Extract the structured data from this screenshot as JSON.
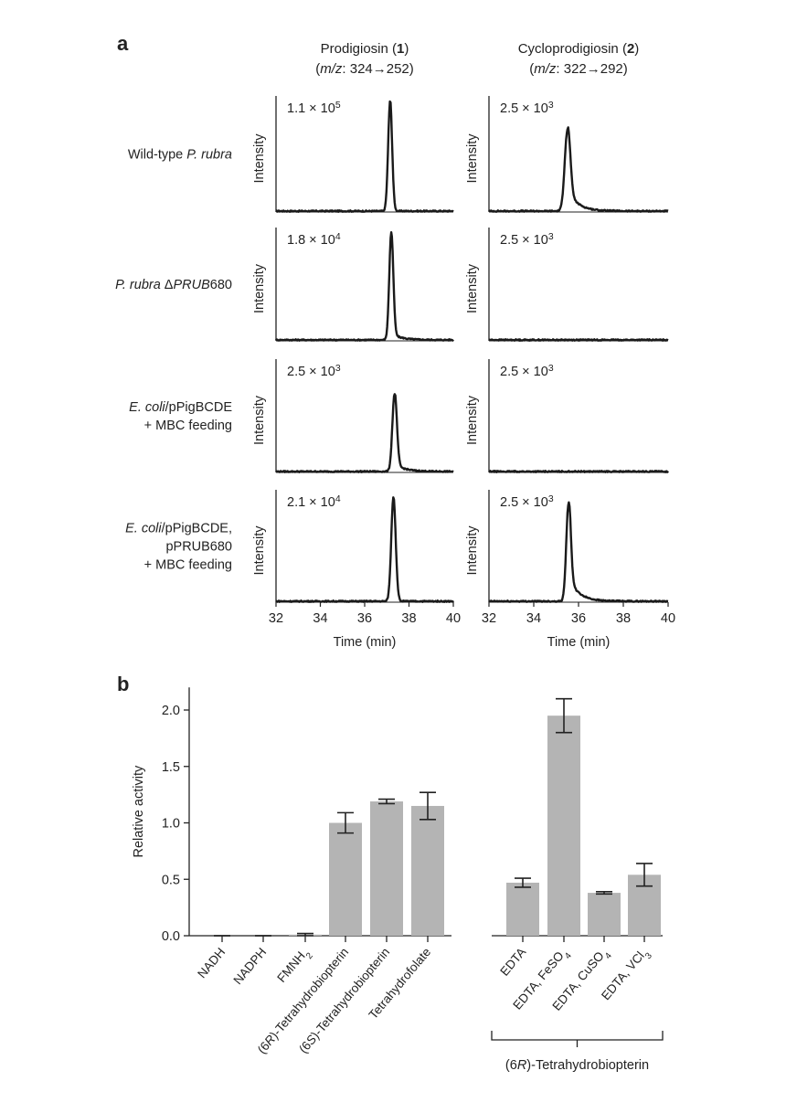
{
  "panel_a": {
    "label": "a",
    "columns": [
      {
        "name": "Prodigiosin",
        "num": "1",
        "mz_prefix": "m/z",
        "mz_transition": ": 324→252"
      },
      {
        "name": "Cycloprodigiosin",
        "num": "2",
        "mz_prefix": "m/z",
        "mz_transition": ": 322→292"
      }
    ],
    "rows": [
      {
        "lines": [
          [
            {
              "t": "Wild-type "
            },
            {
              "t": "P. rubra",
              "i": true
            }
          ]
        ]
      },
      {
        "lines": [
          [
            {
              "t": "P. rubra",
              "i": true
            },
            {
              "t": " Δ"
            },
            {
              "t": "PRUB",
              "i": true
            },
            {
              "t": "680"
            }
          ]
        ]
      },
      {
        "lines": [
          [
            {
              "t": "E. coli",
              "i": true
            },
            {
              "t": "/pPigBCDE"
            }
          ],
          [
            {
              "t": "+ MBC feeding"
            }
          ]
        ]
      },
      {
        "lines": [
          [
            {
              "t": "E. coli",
              "i": true
            },
            {
              "t": "/pPigBCDE,"
            }
          ],
          [
            {
              "t": "pPRUB680"
            }
          ],
          [
            {
              "t": "+ MBC feeding"
            }
          ]
        ]
      }
    ],
    "scales": [
      [
        "1.1 × 10",
        "5",
        "2.5 × 10",
        "3"
      ],
      [
        "1.8 × 10",
        "4",
        "2.5 × 10",
        "3"
      ],
      [
        "2.5 × 10",
        "3",
        "2.5 × 10",
        "3"
      ],
      [
        "2.1 × 10",
        "4",
        "2.5 × 10",
        "3"
      ]
    ],
    "ylabel": "Intensity",
    "xlabel": "Time (min)",
    "xticks": [
      "32",
      "34",
      "36",
      "38",
      "40"
    ]
  },
  "panel_b": {
    "label": "b",
    "ylabel": "Relative activity",
    "group2_label": "(6R)-Tetrahydrobiopterin"
  },
  "chart_data": [
    {
      "type": "line",
      "title": "Prodigiosin (1) (m/z: 324→252)",
      "xlabel": "Time (min)",
      "ylabel": "Intensity",
      "xlim": [
        32,
        40
      ],
      "series": [
        {
          "name": "Wild-type P. rubra",
          "max_intensity": "1.1 × 10^5",
          "peak_time": 37.15,
          "peak_rel": 1.0,
          "width": 0.09,
          "tail": 0.0
        },
        {
          "name": "P. rubra ΔPRUB680",
          "max_intensity": "1.8 × 10^4",
          "peak_time": 37.2,
          "peak_rel": 1.0,
          "width": 0.09,
          "tail": 0.06
        },
        {
          "name": "E. coli/pPigBCDE + MBC feeding",
          "max_intensity": "2.5 × 10^3",
          "peak_time": 37.35,
          "peak_rel": 0.72,
          "width": 0.1,
          "tail": 0.1
        },
        {
          "name": "E. coli/pPigBCDE, pPRUB680 + MBC feeding",
          "max_intensity": "2.1 × 10^4",
          "peak_time": 37.3,
          "peak_rel": 0.98,
          "width": 0.1,
          "tail": 0.0
        }
      ]
    },
    {
      "type": "line",
      "title": "Cycloprodigiosin (2) (m/z: 322→292)",
      "xlabel": "Time (min)",
      "ylabel": "Intensity",
      "xlim": [
        32,
        40
      ],
      "series": [
        {
          "name": "Wild-type P. rubra",
          "max_intensity": "2.5 × 10^3",
          "peak_time": 35.5,
          "peak_rel": 0.72,
          "width": 0.12,
          "tail": 0.28
        },
        {
          "name": "P. rubra ΔPRUB680",
          "max_intensity": "2.5 × 10^3",
          "peak_time": null,
          "peak_rel": 0.0,
          "width": 0.1,
          "tail": 0.0
        },
        {
          "name": "E. coli/pPigBCDE + MBC feeding",
          "max_intensity": "2.5 × 10^3",
          "peak_time": null,
          "peak_rel": 0.0,
          "width": 0.1,
          "tail": 0.0
        },
        {
          "name": "E. coli/pPigBCDE, pPRUB680 + MBC feeding",
          "max_intensity": "2.5 × 10^3",
          "peak_time": 35.55,
          "peak_rel": 0.9,
          "width": 0.1,
          "tail": 0.25
        }
      ]
    },
    {
      "type": "bar",
      "ylabel": "Relative activity",
      "ylim": [
        0,
        2.2
      ],
      "yticks": [
        "0.0",
        "0.5",
        "1.0",
        "1.5",
        "2.0"
      ],
      "groups": [
        {
          "label": "",
          "categories": [
            [
              {
                "t": "NADH"
              }
            ],
            [
              {
                "t": "NADPH"
              }
            ],
            [
              {
                "t": "FMNH"
              },
              {
                "t": "2",
                "sub": true
              }
            ],
            [
              {
                "t": "(6"
              },
              {
                "t": "R",
                "i": true
              },
              {
                "t": ")-Tetrahydrobiopterin"
              }
            ],
            [
              {
                "t": "(6"
              },
              {
                "t": "S",
                "i": true
              },
              {
                "t": ")-Tetrahydrobiopterin"
              }
            ],
            [
              {
                "t": "Tetrahydrofolate"
              }
            ]
          ],
          "values": [
            0.0,
            0.0,
            0.01,
            1.0,
            1.19,
            1.15
          ],
          "errors": [
            0.0,
            0.0,
            0.01,
            0.09,
            0.02,
            0.12
          ]
        },
        {
          "label": "(6R)-Tetrahydrobiopterin",
          "categories": [
            [
              {
                "t": "EDTA"
              }
            ],
            [
              {
                "t": "EDTA, FeSO"
              },
              {
                "t": "4",
                "sub": true
              }
            ],
            [
              {
                "t": "EDTA, CuSO"
              },
              {
                "t": "4",
                "sub": true
              }
            ],
            [
              {
                "t": "EDTA, VCl"
              },
              {
                "t": "3",
                "sub": true
              }
            ]
          ],
          "values": [
            0.47,
            1.95,
            0.38,
            0.54
          ],
          "errors": [
            0.04,
            0.15,
            0.01,
            0.1
          ]
        }
      ],
      "bar_color": "#b4b4b4"
    }
  ]
}
